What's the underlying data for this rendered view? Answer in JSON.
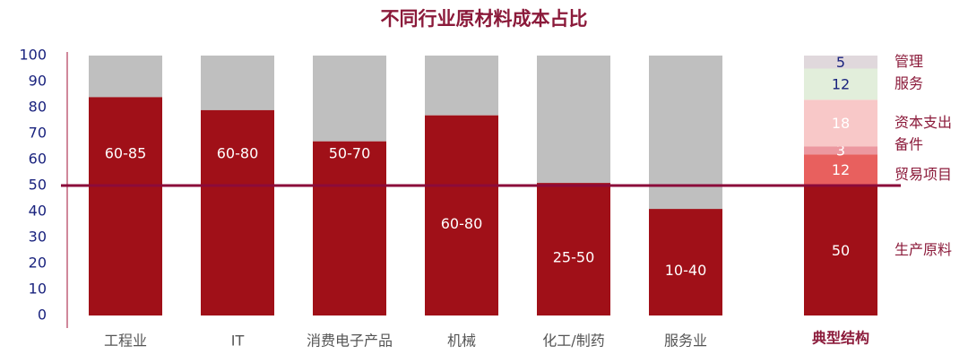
{
  "chart_data": {
    "type": "stacked_bar",
    "title": "不同行业原材料成本占比",
    "categories": [
      "工程业",
      "IT",
      "消费电子产品",
      "机械",
      "化工/制药",
      "服务业"
    ],
    "values": [
      84,
      79,
      67,
      77,
      51,
      41
    ],
    "range_labels": [
      "60-85",
      "60-80",
      "50-70",
      "60-80",
      "25-50",
      "10-40"
    ],
    "color": "#a01018",
    "rest_values": [
      16,
      21,
      33,
      23,
      49,
      59
    ],
    "rest_color": "#bfbfbf",
    "typical": {
      "category": "典型结构",
      "series": [
        {
          "name": "生产原料",
          "color": "#a01018",
          "label_color": "#ffffff",
          "value": 50
        },
        {
          "name": "贸易项目",
          "color": "#e8605e",
          "label_color": "#ffffff",
          "value": 12
        },
        {
          "name": "备件",
          "color": "#ec98a0",
          "label_color": "#ffffff",
          "value": 3
        },
        {
          "name": "资本支出",
          "color": "#f8c8c8",
          "label_color": "#ffffff",
          "value": 18
        },
        {
          "name": "服务",
          "color": "#e2eedb",
          "label_color": "#1a237e",
          "value": 12
        },
        {
          "name": "管理",
          "color": "#e0d8dc",
          "label_color": "#1a237e",
          "value": 5
        }
      ]
    },
    "reference_line": 50,
    "reference_color": "#8b0a3a",
    "ylim": [
      0,
      100
    ],
    "yticks": [
      0,
      10,
      20,
      30,
      40,
      50,
      60,
      70,
      80,
      90,
      100
    ]
  }
}
